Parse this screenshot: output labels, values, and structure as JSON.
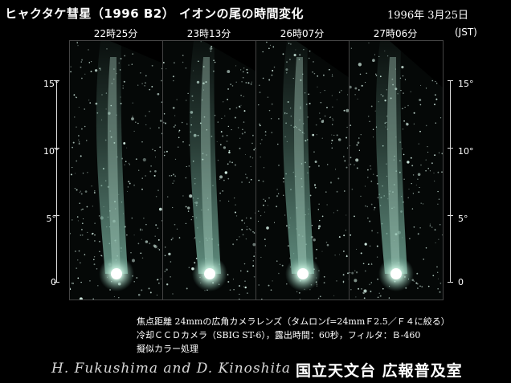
{
  "title": "ヒャクタケ彗星（1996 B2） イオンの尾の時間変化",
  "date": "1996年 3月25日",
  "panels": [
    {
      "time": "22時25分"
    },
    {
      "time": "23時13分"
    },
    {
      "time": "26時07分"
    },
    {
      "time": "27時06分"
    }
  ],
  "timezone": "(JST)",
  "scale": {
    "labels": [
      "15°",
      "10°",
      "5°",
      "0"
    ]
  },
  "caption": {
    "line1": "焦点距離 24mmの広角カメラレンズ（タムロンf=24mmＦ2.5／Ｆ４に絞る）",
    "line2": "冷却ＣＣＤカメラ（SBIG ST-6），露出時間：60秒，フィルタ：Ｂ-460",
    "line3": "擬似カラー処理"
  },
  "credit": {
    "authors": "H. Fukushima and D. Kinoshita",
    "organization": "国立天文台 広報普及室"
  },
  "colors": {
    "background": "#000000",
    "comet_glow": "#bfe8d6",
    "tail": "#6fa392"
  }
}
